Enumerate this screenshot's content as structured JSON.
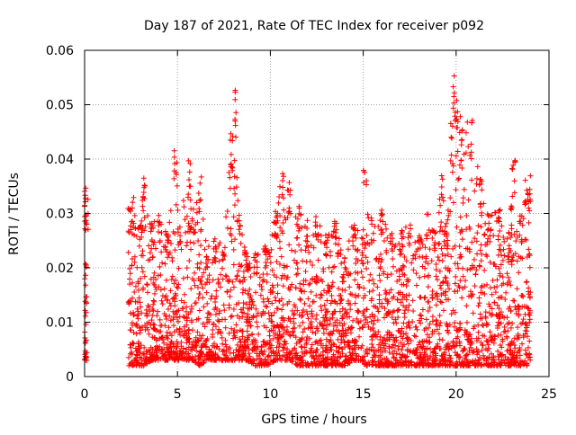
{
  "chart_data": {
    "type": "scatter",
    "title": "Day 187 of 2021, Rate Of TEC Index for receiver p092",
    "xlabel": "GPS time / hours",
    "ylabel": "ROTI / TECUs",
    "xlim": [
      0,
      25
    ],
    "ylim": [
      0,
      0.06
    ],
    "x_ticks": [
      "0",
      "5",
      "10",
      "15",
      "20",
      "25"
    ],
    "y_ticks": [
      "0",
      "0.01",
      "0.02",
      "0.03",
      "0.04",
      "0.05",
      "0.06"
    ],
    "grid": true,
    "legend": "none",
    "marker": "+",
    "marker_color": "#ff0000",
    "envelope_note": "dense ROTI scatter; approximate upper envelope (max values) per hour",
    "hourly_envelope": {
      "x": [
        0.0,
        0.1,
        2.4,
        2.6,
        3.0,
        3.2,
        3.6,
        4.0,
        4.5,
        4.9,
        5.1,
        5.6,
        5.8,
        6.2,
        6.6,
        7.0,
        7.5,
        7.9,
        8.1,
        8.3,
        8.7,
        9.2,
        9.8,
        10.3,
        10.7,
        11.0,
        11.5,
        12.0,
        12.5,
        13.0,
        13.5,
        14.0,
        14.5,
        15.0,
        15.1,
        15.5,
        16.0,
        16.5,
        17.0,
        17.5,
        18.0,
        18.5,
        18.8,
        19.2,
        19.5,
        19.8,
        19.9,
        20.3,
        20.8,
        21.3,
        21.8,
        22.3,
        22.8,
        23.1,
        23.5,
        23.8,
        24.0
      ],
      "y_max": [
        0.035,
        0.033,
        0.031,
        0.034,
        0.03,
        0.037,
        0.029,
        0.03,
        0.026,
        0.042,
        0.028,
        0.04,
        0.031,
        0.037,
        0.024,
        0.026,
        0.024,
        0.045,
        0.053,
        0.03,
        0.023,
        0.023,
        0.024,
        0.031,
        0.039,
        0.036,
        0.033,
        0.029,
        0.03,
        0.026,
        0.029,
        0.023,
        0.029,
        0.027,
        0.038,
        0.03,
        0.031,
        0.028,
        0.027,
        0.028,
        0.026,
        0.03,
        0.028,
        0.037,
        0.029,
        0.047,
        0.057,
        0.046,
        0.048,
        0.037,
        0.03,
        0.031,
        0.025,
        0.041,
        0.03,
        0.038,
        0.037
      ],
      "y_min": [
        0.003,
        0.003,
        0.002,
        0.002,
        0.002,
        0.002,
        0.003,
        0.003,
        0.003,
        0.003,
        0.003,
        0.003,
        0.003,
        0.002,
        0.003,
        0.003,
        0.003,
        0.003,
        0.003,
        0.003,
        0.003,
        0.002,
        0.002,
        0.003,
        0.003,
        0.003,
        0.002,
        0.002,
        0.002,
        0.002,
        0.002,
        0.002,
        0.003,
        0.003,
        0.002,
        0.002,
        0.002,
        0.002,
        0.002,
        0.002,
        0.002,
        0.002,
        0.002,
        0.002,
        0.002,
        0.002,
        0.002,
        0.002,
        0.002,
        0.002,
        0.002,
        0.002,
        0.002,
        0.002,
        0.002,
        0.002,
        0.003
      ]
    }
  }
}
